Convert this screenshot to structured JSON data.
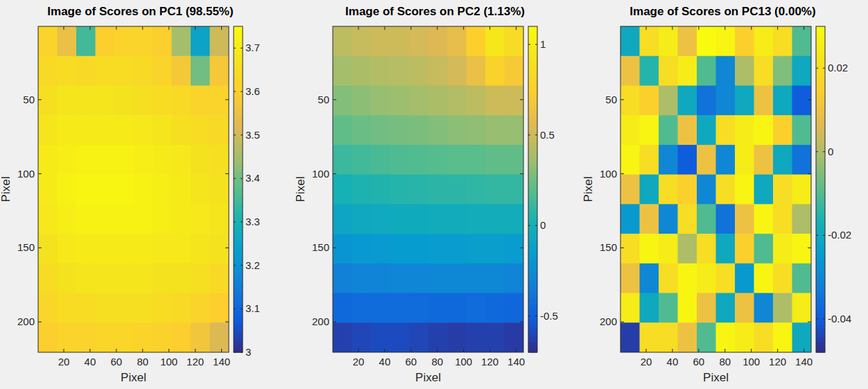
{
  "chart_data": [
    {
      "type": "heatmap",
      "title": "Image of Scores on PC1 (98.55%)",
      "xlabel": "Pixel",
      "ylabel": "Pixel",
      "xlim": [
        0.5,
        145.5
      ],
      "xticks": [
        20,
        40,
        60,
        80,
        100,
        120,
        140
      ],
      "ylim": [
        0.5,
        220.5
      ],
      "yticks": [
        50,
        100,
        150,
        200
      ],
      "x": [
        7.75,
        22.25,
        36.75,
        51.25,
        65.75,
        80.25,
        94.75,
        109.25,
        123.75,
        138.25
      ],
      "y": [
        10.5,
        30.5,
        50.5,
        70.5,
        90.5,
        110.5,
        130.5,
        150.5,
        170.5,
        190.5,
        210.5
      ],
      "cells": [
        [
          3.62,
          3.55,
          3.35,
          3.6,
          3.62,
          3.62,
          3.6,
          3.45,
          3.25,
          3.5
        ],
        [
          3.64,
          3.65,
          3.64,
          3.65,
          3.65,
          3.64,
          3.62,
          3.58,
          3.4,
          3.58
        ],
        [
          3.66,
          3.68,
          3.68,
          3.68,
          3.67,
          3.66,
          3.65,
          3.64,
          3.62,
          3.62
        ],
        [
          3.68,
          3.7,
          3.7,
          3.7,
          3.7,
          3.69,
          3.68,
          3.66,
          3.65,
          3.64
        ],
        [
          3.7,
          3.71,
          3.72,
          3.72,
          3.72,
          3.71,
          3.7,
          3.69,
          3.67,
          3.66
        ],
        [
          3.7,
          3.72,
          3.73,
          3.73,
          3.73,
          3.72,
          3.71,
          3.7,
          3.68,
          3.67
        ],
        [
          3.69,
          3.71,
          3.72,
          3.72,
          3.72,
          3.72,
          3.71,
          3.7,
          3.69,
          3.68
        ],
        [
          3.67,
          3.69,
          3.7,
          3.7,
          3.7,
          3.7,
          3.69,
          3.69,
          3.68,
          3.67
        ],
        [
          3.65,
          3.67,
          3.68,
          3.68,
          3.68,
          3.68,
          3.67,
          3.67,
          3.66,
          3.64
        ],
        [
          3.63,
          3.65,
          3.65,
          3.66,
          3.66,
          3.66,
          3.65,
          3.64,
          3.62,
          3.6
        ],
        [
          3.6,
          3.62,
          3.62,
          3.63,
          3.63,
          3.62,
          3.61,
          3.6,
          3.57,
          3.52
        ]
      ],
      "colorbar": {
        "range": [
          3,
          3.75
        ],
        "ticks": [
          3,
          3.1,
          3.2,
          3.3,
          3.4,
          3.5,
          3.6,
          3.7
        ]
      }
    },
    {
      "type": "heatmap",
      "title": "Image of Scores on PC2 (1.13%)",
      "xlabel": "Pixel",
      "ylabel": "Pixel",
      "xlim": [
        0.5,
        145.5
      ],
      "xticks": [
        20,
        40,
        60,
        80,
        100,
        120,
        140
      ],
      "ylim": [
        0.5,
        220.5
      ],
      "yticks": [
        50,
        100,
        150,
        200
      ],
      "x": [
        7.75,
        22.25,
        36.75,
        51.25,
        65.75,
        80.25,
        94.75,
        109.25,
        123.75,
        138.25
      ],
      "y": [
        10.5,
        30.5,
        50.5,
        70.5,
        90.5,
        110.5,
        130.5,
        150.5,
        170.5,
        190.5,
        210.5
      ],
      "cells": [
        [
          0.45,
          0.48,
          0.5,
          0.5,
          0.52,
          0.55,
          0.6,
          0.75,
          0.95,
          0.85
        ],
        [
          0.38,
          0.4,
          0.42,
          0.43,
          0.45,
          0.48,
          0.52,
          0.62,
          0.78,
          0.7
        ],
        [
          0.3,
          0.32,
          0.35,
          0.36,
          0.38,
          0.4,
          0.42,
          0.45,
          0.5,
          0.5
        ],
        [
          0.22,
          0.24,
          0.26,
          0.27,
          0.28,
          0.3,
          0.32,
          0.33,
          0.35,
          0.35
        ],
        [
          0.12,
          0.14,
          0.16,
          0.17,
          0.18,
          0.19,
          0.2,
          0.2,
          0.22,
          0.22
        ],
        [
          0.02,
          0.04,
          0.05,
          0.06,
          0.07,
          0.08,
          0.08,
          0.09,
          0.1,
          0.1
        ],
        [
          -0.08,
          -0.06,
          -0.05,
          -0.04,
          -0.04,
          -0.03,
          -0.03,
          -0.02,
          -0.02,
          -0.02
        ],
        [
          -0.2,
          -0.18,
          -0.17,
          -0.16,
          -0.16,
          -0.15,
          -0.15,
          -0.14,
          -0.14,
          -0.15
        ],
        [
          -0.32,
          -0.3,
          -0.3,
          -0.29,
          -0.29,
          -0.28,
          -0.28,
          -0.28,
          -0.28,
          -0.3
        ],
        [
          -0.45,
          -0.44,
          -0.43,
          -0.43,
          -0.44,
          -0.45,
          -0.45,
          -0.44,
          -0.45,
          -0.46
        ],
        [
          -0.62,
          -0.6,
          -0.58,
          -0.58,
          -0.6,
          -0.62,
          -0.63,
          -0.62,
          -0.62,
          -0.64
        ]
      ],
      "colorbar": {
        "range": [
          -0.7,
          1.1
        ],
        "ticks": [
          -0.5,
          0,
          0.5,
          1
        ]
      }
    },
    {
      "type": "heatmap",
      "title": "Image of Scores on PC13 (0.00%)",
      "xlabel": "Pixel",
      "ylabel": "Pixel",
      "xlim": [
        0.5,
        145.5
      ],
      "xticks": [
        20,
        40,
        60,
        80,
        100,
        120,
        140
      ],
      "ylim": [
        0.5,
        220.5
      ],
      "yticks": [
        50,
        100,
        150,
        200
      ],
      "x": [
        7.75,
        22.25,
        36.75,
        51.25,
        65.75,
        80.25,
        94.75,
        109.25,
        123.75,
        138.25
      ],
      "y": [
        10.5,
        30.5,
        50.5,
        70.5,
        90.5,
        110.5,
        130.5,
        150.5,
        170.5,
        190.5,
        210.5
      ],
      "cells": [
        [
          -0.02,
          0.02,
          0.025,
          0.01,
          0.03,
          0.028,
          0.015,
          0.025,
          0.02,
          -0.01
        ],
        [
          0.01,
          -0.015,
          0.02,
          0.025,
          -0.01,
          -0.03,
          0,
          0.02,
          -0.005,
          -0.02
        ],
        [
          0.02,
          0.015,
          0,
          -0.02,
          -0.035,
          -0.03,
          -0.02,
          0.01,
          -0.02,
          -0.04
        ],
        [
          0.025,
          0.028,
          -0.01,
          0.01,
          -0.02,
          0.02,
          0.025,
          0.028,
          0.015,
          -0.01
        ],
        [
          0.028,
          0.02,
          -0.03,
          -0.04,
          0.01,
          -0.03,
          0.025,
          0.01,
          -0.02,
          -0.035
        ],
        [
          0.01,
          -0.02,
          0.02,
          0.015,
          -0.03,
          0.02,
          0.028,
          -0.02,
          0.02,
          0.025
        ],
        [
          -0.025,
          0.01,
          -0.03,
          0.02,
          -0.01,
          -0.035,
          0.01,
          0.028,
          0.02,
          0
        ],
        [
          0.02,
          0.028,
          0.025,
          0,
          0.02,
          -0.02,
          0.015,
          -0.01,
          0.025,
          0.028
        ],
        [
          0.01,
          -0.03,
          0.02,
          0.028,
          0.025,
          0.02,
          -0.025,
          0.028,
          0.02,
          -0.01
        ],
        [
          0.025,
          -0.02,
          -0.01,
          0.028,
          0.01,
          -0.02,
          0.01,
          -0.03,
          0,
          0.025
        ],
        [
          -0.045,
          0.02,
          0.02,
          0.01,
          -0.01,
          0.028,
          0.025,
          0.02,
          0.028,
          -0.02
        ]
      ],
      "colorbar": {
        "range": [
          -0.048,
          0.03
        ],
        "ticks": [
          -0.04,
          -0.02,
          0,
          0.02
        ]
      }
    }
  ]
}
